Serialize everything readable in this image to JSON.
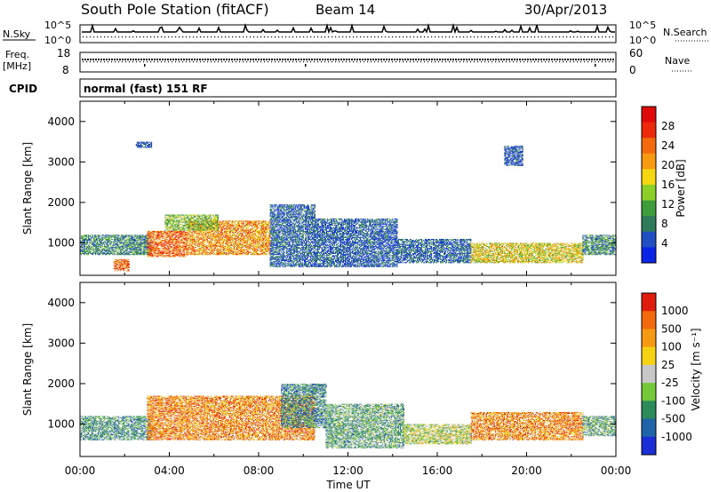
{
  "header": {
    "station": "South Pole Station (fitACF)",
    "beam": "Beam 14",
    "date": "30/Apr/2013"
  },
  "top_panels": {
    "nsky": {
      "label": "N.Sky",
      "left_ticks": [
        "10^5",
        "10^0"
      ],
      "right_ticks": [
        "10^5",
        "10^0"
      ],
      "right_label": "N.Search"
    },
    "freq": {
      "label_line1": "Freq.",
      "label_line2": "[MHz]",
      "left_ticks": [
        "18",
        "8"
      ],
      "right_ticks": [
        "60",
        "0"
      ],
      "right_label": "Nave"
    },
    "cpid": {
      "label": "CPID",
      "text": "normal (fast) 151 RF"
    }
  },
  "chart_data": [
    {
      "type": "heatmap",
      "name": "power",
      "ylabel": "Slant Range [km]",
      "ylim": [
        200,
        4500
      ],
      "y_ticks": [
        1000,
        2000,
        3000,
        4000
      ],
      "xlim_hours": [
        0,
        24
      ],
      "colorbar": {
        "label": "Power [dB]",
        "ticks": [
          "28",
          "24",
          "20",
          "16",
          "12",
          "8",
          "4"
        ],
        "colors": [
          "#0a24e6",
          "#1f4fc0",
          "#2f7a5a",
          "#3e9c3a",
          "#8ccf28",
          "#f6d812",
          "#f79a10",
          "#f46a0c",
          "#ee2a0c",
          "#e00a0a"
        ]
      },
      "echo_regions": [
        {
          "t": [
            0.0,
            3.2
          ],
          "r": [
            700,
            1200
          ],
          "level": 0.3
        },
        {
          "t": [
            1.5,
            2.2
          ],
          "r": [
            300,
            600
          ],
          "level": 0.85
        },
        {
          "t": [
            3.0,
            4.8
          ],
          "r": [
            650,
            1300
          ],
          "level": 0.85
        },
        {
          "t": [
            4.8,
            8.5
          ],
          "r": [
            700,
            1550
          ],
          "level": 0.75
        },
        {
          "t": [
            3.8,
            6.2
          ],
          "r": [
            1300,
            1700
          ],
          "level": 0.45
        },
        {
          "t": [
            8.5,
            10.5
          ],
          "r": [
            400,
            1950
          ],
          "level": 0.2
        },
        {
          "t": [
            10.5,
            14.2
          ],
          "r": [
            400,
            1600
          ],
          "level": 0.18
        },
        {
          "t": [
            14.2,
            17.5
          ],
          "r": [
            500,
            1100
          ],
          "level": 0.2
        },
        {
          "t": [
            17.5,
            22.5
          ],
          "r": [
            500,
            1000
          ],
          "level": 0.6
        },
        {
          "t": [
            22.5,
            24.0
          ],
          "r": [
            700,
            1200
          ],
          "level": 0.3
        },
        {
          "t": [
            2.5,
            3.2
          ],
          "r": [
            3350,
            3500
          ],
          "level": 0.15
        },
        {
          "t": [
            19.0,
            19.8
          ],
          "r": [
            2900,
            3400
          ],
          "level": 0.15
        }
      ]
    },
    {
      "type": "heatmap",
      "name": "velocity",
      "ylabel": "Slant Range [km]",
      "ylim": [
        200,
        4500
      ],
      "y_ticks": [
        1000,
        2000,
        3000,
        4000
      ],
      "xlim_hours": [
        0,
        24
      ],
      "x_ticks": [
        "00:00",
        "04:00",
        "08:00",
        "12:00",
        "16:00",
        "20:00",
        "00:00"
      ],
      "xlabel": "Time UT",
      "colorbar": {
        "label": "Velocity [m s⁻¹]",
        "ticks": [
          "1000",
          "500",
          "100",
          "25",
          "-25",
          "-100",
          "-500",
          "-1000"
        ],
        "colors": [
          "#1c2fd6",
          "#1f63a8",
          "#2d8a5a",
          "#74c83a",
          "#c8c8c8",
          "#f6d215",
          "#f59a12",
          "#f26a0c",
          "#e01c0c"
        ]
      },
      "echo_regions": [
        {
          "t": [
            0.0,
            3.2
          ],
          "r": [
            600,
            1200
          ],
          "level": 0.35
        },
        {
          "t": [
            3.0,
            10.5
          ],
          "r": [
            600,
            1700
          ],
          "level": 0.85
        },
        {
          "t": [
            9.0,
            11.0
          ],
          "r": [
            900,
            2000
          ],
          "level": 0.3
        },
        {
          "t": [
            11.0,
            14.5
          ],
          "r": [
            400,
            1500
          ],
          "level": 0.4
        },
        {
          "t": [
            14.5,
            17.5
          ],
          "r": [
            500,
            1000
          ],
          "level": 0.55
        },
        {
          "t": [
            17.5,
            22.5
          ],
          "r": [
            600,
            1300
          ],
          "level": 0.85
        },
        {
          "t": [
            22.5,
            24.0
          ],
          "r": [
            700,
            1200
          ],
          "level": 0.4
        }
      ]
    }
  ]
}
